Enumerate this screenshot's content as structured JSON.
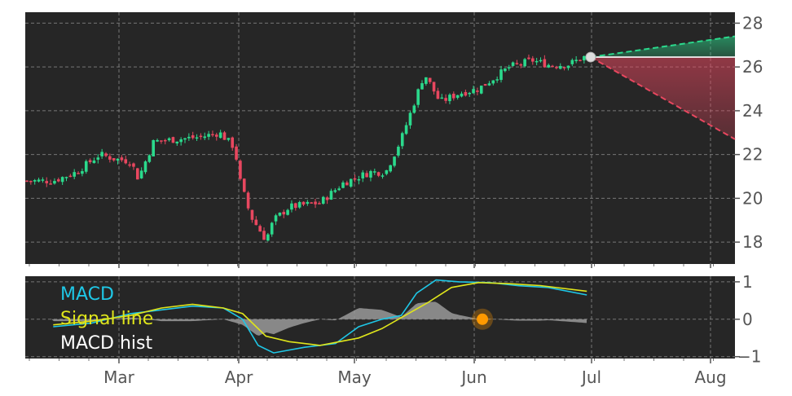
{
  "chart_data": [
    {
      "type": "candlestick",
      "panel": "price",
      "ylim": [
        17,
        28.5
      ],
      "yticks": [
        "18",
        "20",
        "22",
        "24",
        "26",
        "28"
      ],
      "xticks": [
        "Mar",
        "Apr",
        "May",
        "Jun",
        "Jul",
        "Aug"
      ],
      "grid": true,
      "background": "#262626",
      "colors": {
        "up": "#2bd98c",
        "down": "#e8475f"
      },
      "approx_series": {
        "description_points": [
          [
            "Feb-12",
            20.8
          ],
          [
            "Feb-18",
            21.2
          ],
          [
            "Feb-24",
            22.0
          ],
          [
            "Feb-28",
            21.8
          ],
          [
            "Mar-04",
            21.7
          ],
          [
            "Mar-06",
            20.9
          ],
          [
            "Mar-10",
            22.6
          ],
          [
            "Mar-16",
            22.7
          ],
          [
            "Mar-22",
            22.8
          ],
          [
            "Mar-27",
            23.0
          ],
          [
            "Mar-31",
            22.3
          ],
          [
            "Apr-01",
            21.0
          ],
          [
            "Apr-04",
            19.2
          ],
          [
            "Apr-08",
            18.1
          ],
          [
            "Apr-10",
            19.0
          ],
          [
            "Apr-14",
            19.6
          ],
          [
            "Apr-22",
            19.8
          ],
          [
            "Apr-28",
            20.7
          ],
          [
            "May-05",
            21.2
          ],
          [
            "May-09",
            21.2
          ],
          [
            "May-13",
            22.7
          ],
          [
            "May-16",
            24.2
          ],
          [
            "May-19",
            25.7
          ],
          [
            "May-23",
            24.4
          ],
          [
            "May-28",
            24.8
          ],
          [
            "Jun-02",
            25.0
          ],
          [
            "Jun-06",
            25.5
          ],
          [
            "Jun-10",
            26.0
          ],
          [
            "Jun-16",
            26.3
          ],
          [
            "Jun-20",
            26.1
          ],
          [
            "Jun-25",
            26.1
          ],
          [
            "Jun-30",
            26.5
          ]
        ]
      },
      "forecast": {
        "start": [
          "Jul-01",
          26.45
        ],
        "upper_end": [
          "Aug-06",
          27.4
        ],
        "lower_end": [
          "Aug-06",
          22.7
        ],
        "upper_color": "#2bd98c",
        "lower_color": "#e8475f",
        "marker_color": "#dddddd"
      }
    },
    {
      "type": "line",
      "panel": "macd",
      "ylim": [
        -1.05,
        1.15
      ],
      "yticks": [
        "1",
        "0",
        "−1"
      ],
      "series": [
        {
          "name": "MACD",
          "color": "#1fc7e6"
        },
        {
          "name": "Signal line",
          "color": "#dfe51b"
        },
        {
          "name": "MACD hist",
          "color": "#ffffff"
        }
      ],
      "marker": {
        "x": "Jun-03",
        "y": 0.0,
        "color": "#ff9900"
      }
    }
  ]
}
